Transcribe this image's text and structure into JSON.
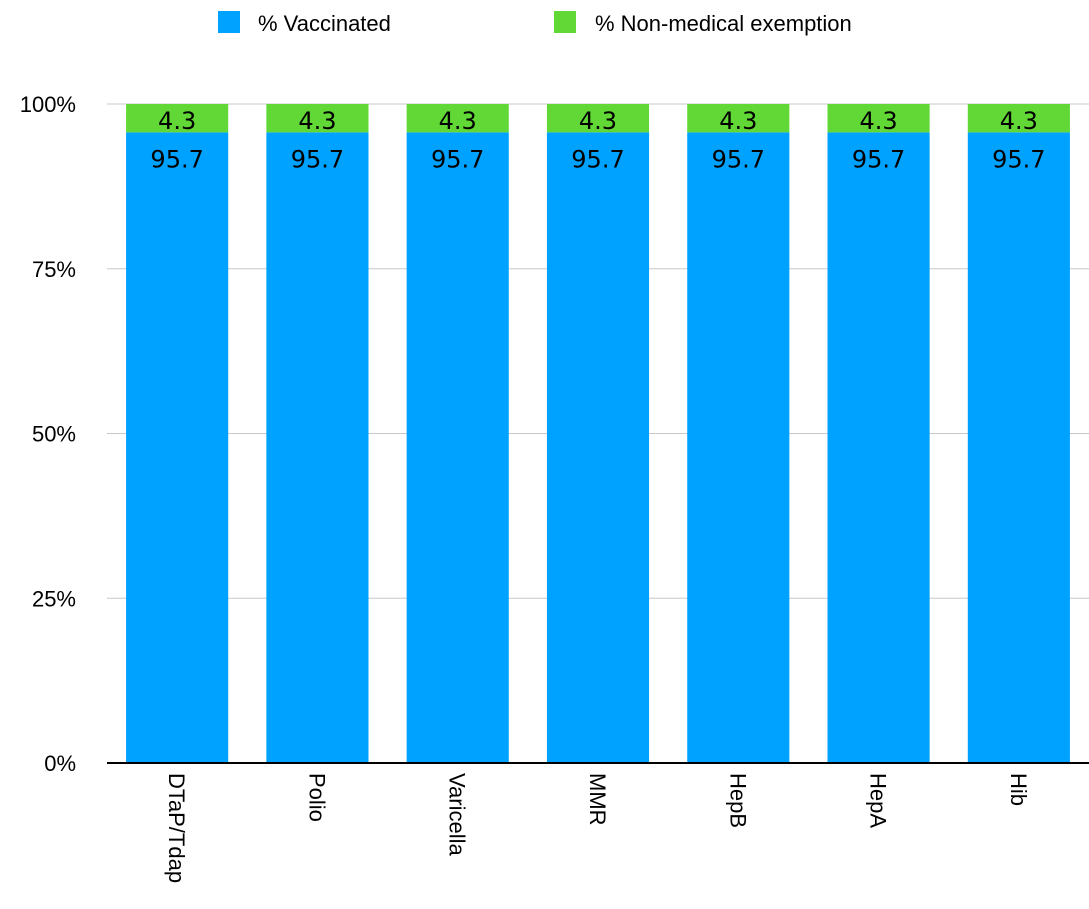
{
  "chart_data": {
    "type": "bar",
    "stacked": true,
    "categories": [
      "DTaP/Tdap",
      "Polio",
      "Varicella",
      "MMR",
      "HepB",
      "HepA",
      "Hib"
    ],
    "series": [
      {
        "name": "% Vaccinated",
        "values": [
          95.7,
          95.7,
          95.7,
          95.7,
          95.7,
          95.7,
          95.7
        ],
        "color": "#00a2ff"
      },
      {
        "name": "% Non-medical exemption",
        "values": [
          4.3,
          4.3,
          4.3,
          4.3,
          4.3,
          4.3,
          4.3
        ],
        "color": "#61d836"
      }
    ],
    "yticks": [
      "0%",
      "25%",
      "50%",
      "75%",
      "100%"
    ],
    "ylim": [
      0,
      100
    ],
    "grid": true,
    "legend": "top",
    "title": "",
    "xlabel": "",
    "ylabel": ""
  }
}
